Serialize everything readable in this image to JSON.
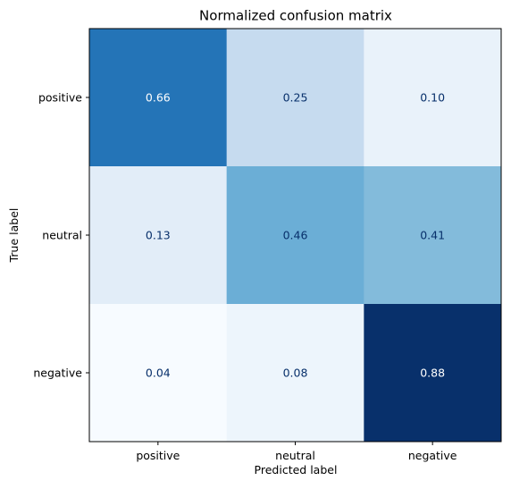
{
  "chart_data": {
    "type": "heatmap",
    "title": "Normalized confusion matrix",
    "xlabel": "Predicted label",
    "ylabel": "True label",
    "x_categories": [
      "positive",
      "neutral",
      "negative"
    ],
    "y_categories": [
      "positive",
      "neutral",
      "negative"
    ],
    "values": [
      [
        0.66,
        0.25,
        0.1
      ],
      [
        0.13,
        0.46,
        0.41
      ],
      [
        0.04,
        0.08,
        0.88
      ]
    ],
    "value_labels": [
      [
        "0.66",
        "0.25",
        "0.10"
      ],
      [
        "0.13",
        "0.46",
        "0.41"
      ],
      [
        "0.04",
        "0.08",
        "0.88"
      ]
    ],
    "colormap": "Blues",
    "vmin": 0.04,
    "vmax": 0.88,
    "grid": false,
    "colorbar": false
  }
}
